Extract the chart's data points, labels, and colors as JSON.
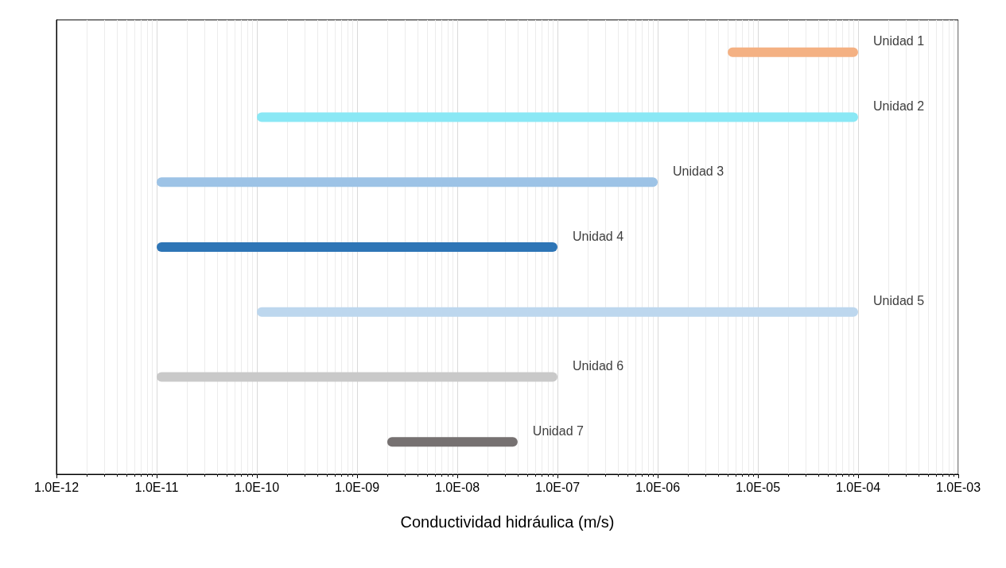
{
  "chart_data": {
    "type": "bar",
    "orientation": "horizontal",
    "xlabel": "Conductividad hidráulica (m/s)",
    "categories": [
      "Unidad 1",
      "Unidad 2",
      "Unidad 3",
      "Unidad 4",
      "Unidad 5",
      "Unidad 6",
      "Unidad 7"
    ],
    "base": [
      5e-06,
      1e-10,
      1e-11,
      1e-11,
      1e-10,
      1e-11,
      2e-09
    ],
    "values": [
      9.5e-05,
      9.99999e-05,
      9.9999e-07,
      9.999e-08,
      9.99999e-05,
      9.999e-08,
      3.8e-08
    ],
    "colors": [
      "#f4b183",
      "#8ae8f5",
      "#9dc3e6",
      "#2e75b6",
      "#bdd7ee",
      "#c9c9c9",
      "#767171"
    ],
    "log": "x",
    "xlim": [
      1e-12,
      0.001
    ],
    "xticks": [
      {
        "value": 1e-12,
        "label": "1.0E-12"
      },
      {
        "value": 1e-11,
        "label": "1.0E-11"
      },
      {
        "value": 1e-10,
        "label": "1.0E-10"
      },
      {
        "value": 1e-09,
        "label": "1.0E-09"
      },
      {
        "value": 1e-08,
        "label": "1.0E-08"
      },
      {
        "value": 1e-07,
        "label": "1.0E-07"
      },
      {
        "value": 1e-06,
        "label": "1.0E-06"
      },
      {
        "value": 1e-05,
        "label": "1.0E-05"
      },
      {
        "value": 0.0001,
        "label": "1.0E-04"
      },
      {
        "value": 0.001,
        "label": "1.0E-03"
      }
    ],
    "grid": "x",
    "tick_labels": "x"
  }
}
